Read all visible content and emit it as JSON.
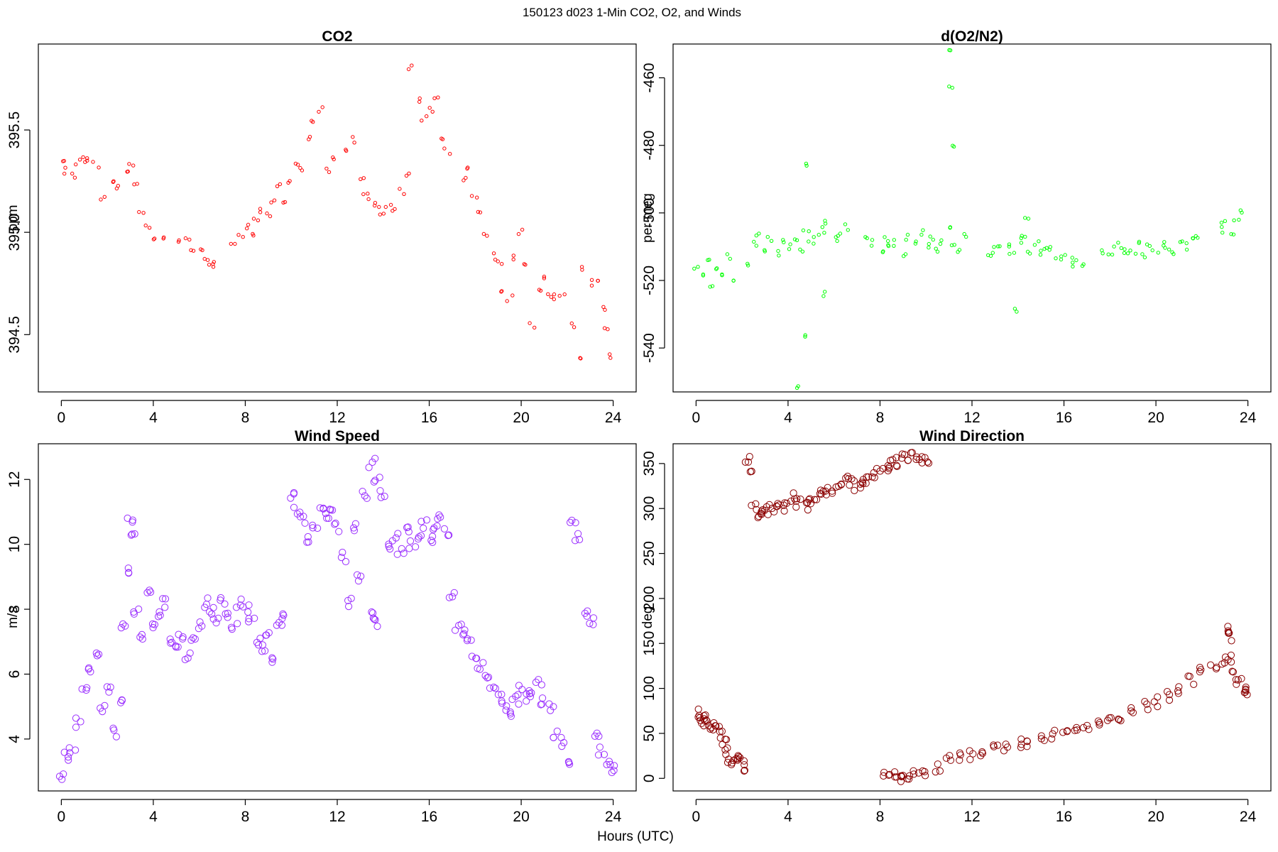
{
  "page": {
    "title": "150123   d023   1-Min CO2, O2, and Winds",
    "xlabel": "Hours (UTC)"
  },
  "chart_data": [
    {
      "type": "scatter",
      "title": "CO2",
      "ylabel": "ppm",
      "xlabel": "",
      "xlim": [
        -1,
        25
      ],
      "ylim": [
        394.22,
        395.92
      ],
      "xticks": [
        0,
        4,
        8,
        12,
        16,
        20,
        24
      ],
      "yticks": [
        394.5,
        395.0,
        395.5
      ],
      "ytick_labels": [
        "394.5",
        "395.0",
        "395.5"
      ],
      "color": "#ff0000",
      "x": [
        0.0,
        0.25,
        0.5,
        0.75,
        1.0,
        1.25,
        1.5,
        1.75,
        2.25,
        2.5,
        2.75,
        3.0,
        3.25,
        3.5,
        3.75,
        4.0,
        4.5,
        5.0,
        5.5,
        5.75,
        6.0,
        6.25,
        6.5,
        6.75,
        7.5,
        7.75,
        8.0,
        8.25,
        8.5,
        8.75,
        9.0,
        9.25,
        9.5,
        9.75,
        10.0,
        10.25,
        10.5,
        10.75,
        11.0,
        11.25,
        11.5,
        11.75,
        12.25,
        12.75,
        13.0,
        13.25,
        13.5,
        13.75,
        14.0,
        14.25,
        14.5,
        14.75,
        15.0,
        15.25,
        15.5,
        15.75,
        16.0,
        16.25,
        16.5,
        16.75,
        17.5,
        17.75,
        18.0,
        18.25,
        18.5,
        18.75,
        19.0,
        19.25,
        19.5,
        19.75,
        20.0,
        20.25,
        20.5,
        20.75,
        21.0,
        21.25,
        21.5,
        21.75,
        22.25,
        22.5,
        22.75,
        23.0,
        23.25,
        23.5,
        23.75,
        24.0
      ],
      "y": [
        395.35,
        395.3,
        395.28,
        395.34,
        395.36,
        395.35,
        395.33,
        395.17,
        395.25,
        395.22,
        395.28,
        395.33,
        395.22,
        395.1,
        395.02,
        394.98,
        394.97,
        394.96,
        394.97,
        394.92,
        394.9,
        394.88,
        394.85,
        394.84,
        394.94,
        394.98,
        395.02,
        395.0,
        395.05,
        395.1,
        395.08,
        395.15,
        395.22,
        395.15,
        395.25,
        395.32,
        395.3,
        395.45,
        395.55,
        395.6,
        395.3,
        395.35,
        395.4,
        395.45,
        395.25,
        395.2,
        395.15,
        395.12,
        395.1,
        395.13,
        395.12,
        395.2,
        395.28,
        395.8,
        395.65,
        395.55,
        395.6,
        395.65,
        395.45,
        395.4,
        395.25,
        395.3,
        395.18,
        395.1,
        395.0,
        394.88,
        394.85,
        394.72,
        394.68,
        394.88,
        395.0,
        394.85,
        394.55,
        394.72,
        394.78,
        394.7,
        394.68,
        394.7,
        394.55,
        394.4,
        394.82,
        394.75,
        394.78,
        394.62,
        394.52,
        394.4
      ]
    },
    {
      "type": "scatter",
      "title": "d(O2/N2)",
      "ylabel": "per meg",
      "xlabel": "",
      "xlim": [
        -1,
        25
      ],
      "ylim": [
        -553,
        -450
      ],
      "xticks": [
        0,
        4,
        8,
        12,
        16,
        20,
        24
      ],
      "yticks": [
        -540,
        -520,
        -500,
        -480,
        -460
      ],
      "ytick_labels": [
        "-540",
        "-520",
        "-500",
        "-480",
        "-460"
      ],
      "color": "#00ff00",
      "x": [
        0.0,
        0.25,
        0.5,
        0.75,
        1.0,
        1.25,
        1.5,
        1.75,
        2.25,
        2.5,
        2.75,
        3.0,
        3.25,
        3.5,
        3.75,
        4.0,
        4.25,
        4.5,
        4.75,
        5.0,
        5.25,
        5.5,
        5.75,
        6.0,
        6.25,
        6.5,
        7.5,
        7.75,
        8.0,
        8.25,
        8.5,
        8.75,
        9.0,
        9.25,
        9.5,
        9.75,
        10.0,
        10.25,
        10.5,
        10.75,
        11.0,
        11.25,
        11.5,
        11.75,
        12.75,
        13.0,
        13.25,
        13.5,
        13.75,
        14.0,
        14.25,
        14.5,
        14.75,
        15.0,
        15.25,
        15.5,
        15.75,
        16.0,
        16.25,
        16.5,
        16.75,
        17.75,
        18.0,
        18.25,
        18.5,
        18.75,
        19.0,
        19.25,
        19.5,
        19.75,
        20.0,
        20.25,
        20.5,
        20.75,
        21.0,
        21.25,
        21.5,
        21.75,
        22.75,
        23.0,
        23.25,
        23.5,
        23.75,
        4.6,
        4.5,
        4.7,
        11.05,
        11.0,
        11.1,
        13.8,
        5.5,
        14.4
      ],
      "y": [
        -517,
        -519,
        -514,
        -521,
        -516,
        -518,
        -513,
        -520,
        -515,
        -509,
        -507,
        -511,
        -508,
        -512,
        -509,
        -510,
        -508,
        -511,
        -506,
        -509,
        -507,
        -505,
        -503,
        -508,
        -506,
        -504,
        -507,
        -509,
        -511,
        -508,
        -510,
        -509,
        -512,
        -507,
        -509,
        -506,
        -510,
        -508,
        -511,
        -509,
        -505,
        -510,
        -512,
        -507,
        -513,
        -511,
        -509,
        -510,
        -512,
        -508,
        -507,
        -511,
        -509,
        -512,
        -510,
        -511,
        -513,
        -512,
        -515,
        -514,
        -516,
        -511,
        -512,
        -509,
        -510,
        -511,
        -512,
        -509,
        -513,
        -510,
        -511,
        -509,
        -510,
        -512,
        -508,
        -510,
        -508,
        -507,
        -505,
        -503,
        -506,
        -502,
        -500,
        -537,
        -552,
        -485,
        -452,
        -463,
        -480,
        -529,
        -524,
        -502
      ]
    },
    {
      "type": "scatter",
      "title": "Wind Speed",
      "ylabel": "m/s",
      "xlabel": "",
      "xlim": [
        -1,
        25
      ],
      "ylim": [
        2.4,
        13.1
      ],
      "xticks": [
        0,
        4,
        8,
        12,
        16,
        20,
        24
      ],
      "yticks": [
        4,
        6,
        8,
        10,
        12
      ],
      "ytick_labels": [
        "4",
        "6",
        "8",
        "10",
        "12"
      ],
      "color": "#9b30ff",
      "x": [
        0.0,
        0.25,
        0.5,
        0.75,
        1.0,
        1.25,
        1.5,
        1.75,
        2.0,
        2.25,
        2.5,
        2.75,
        3.0,
        3.25,
        3.5,
        3.75,
        4.0,
        4.25,
        4.5,
        4.75,
        5.0,
        5.25,
        5.5,
        5.75,
        6.0,
        6.25,
        6.5,
        6.75,
        7.0,
        7.25,
        7.5,
        7.75,
        8.0,
        8.25,
        8.5,
        8.75,
        9.0,
        9.25,
        9.5,
        9.75,
        10.0,
        10.25,
        10.5,
        10.75,
        11.0,
        11.25,
        11.5,
        11.75,
        12.0,
        12.25,
        12.5,
        12.75,
        13.0,
        13.25,
        13.5,
        13.75,
        14.0,
        14.25,
        14.5,
        14.75,
        15.0,
        15.25,
        15.5,
        15.75,
        16.0,
        16.25,
        16.5,
        16.75,
        17.0,
        17.25,
        17.5,
        17.75,
        18.0,
        18.25,
        18.5,
        18.75,
        19.0,
        19.25,
        19.5,
        19.75,
        20.0,
        20.25,
        20.5,
        20.75,
        21.0,
        21.25,
        21.5,
        21.75,
        22.0,
        22.25,
        22.5,
        22.75,
        23.0,
        23.25,
        23.5,
        23.75,
        24.0,
        3.0,
        3.1,
        13.5,
        13.7
      ],
      "y": [
        2.9,
        3.5,
        3.6,
        4.5,
        5.5,
        6.2,
        6.5,
        5.0,
        5.5,
        4.2,
        5.2,
        7.5,
        9.2,
        8.0,
        7.2,
        8.5,
        7.5,
        7.8,
        8.2,
        7.0,
        6.8,
        7.2,
        6.6,
        7.0,
        7.5,
        8.2,
        8.0,
        7.6,
        8.2,
        7.8,
        7.5,
        8.2,
        8.0,
        7.6,
        7.0,
        6.8,
        7.2,
        6.5,
        7.5,
        7.8,
        11.5,
        11.0,
        10.8,
        10.2,
        10.6,
        11.0,
        10.8,
        11.2,
        10.5,
        9.6,
        8.2,
        10.5,
        9.0,
        11.5,
        12.5,
        12.0,
        11.5,
        10.0,
        10.2,
        9.8,
        10.5,
        10.0,
        10.3,
        10.6,
        10.2,
        10.5,
        10.8,
        10.4,
        8.5,
        7.5,
        7.3,
        7.0,
        6.5,
        6.2,
        6.0,
        5.6,
        5.3,
        5.0,
        4.8,
        5.2,
        5.5,
        5.3,
        5.4,
        5.7,
        5.2,
        5.0,
        4.1,
        3.9,
        3.2,
        10.8,
        10.2,
        7.8,
        7.6,
        4.1,
        3.6,
        3.2,
        3.1,
        10.8,
        10.2,
        7.8,
        7.6
      ],
      "y_extra_note": ""
    },
    {
      "type": "scatter",
      "title": "Wind Direction",
      "ylabel": "deg",
      "xlabel": "",
      "xlim": [
        -1,
        25
      ],
      "ylim": [
        -14,
        372
      ],
      "xticks": [
        0,
        4,
        8,
        12,
        16,
        20,
        24
      ],
      "yticks": [
        0,
        50,
        100,
        150,
        200,
        250,
        300,
        350
      ],
      "ytick_labels": [
        "0",
        "50",
        "100",
        "150",
        "200",
        "250",
        "300",
        "350"
      ],
      "color": "#8b0000",
      "x": [
        0.0,
        0.15,
        0.3,
        0.45,
        0.6,
        0.75,
        0.9,
        1.05,
        1.2,
        1.35,
        1.5,
        1.65,
        1.8,
        1.95,
        2.1,
        2.25,
        2.4,
        2.55,
        2.7,
        2.85,
        3.0,
        3.25,
        3.5,
        3.75,
        4.0,
        4.25,
        4.5,
        4.75,
        5.0,
        5.25,
        5.5,
        5.75,
        6.0,
        6.25,
        6.5,
        6.75,
        7.0,
        7.25,
        7.5,
        7.75,
        8.0,
        8.25,
        8.5,
        8.75,
        9.0,
        9.25,
        9.5,
        9.75,
        10.0,
        8.3,
        8.5,
        8.8,
        9.0,
        9.3,
        9.6,
        10.0,
        10.5,
        11.0,
        11.5,
        12.0,
        12.5,
        13.0,
        13.5,
        14.0,
        14.5,
        15.0,
        15.5,
        16.0,
        16.5,
        17.0,
        17.5,
        18.0,
        18.5,
        19.0,
        19.5,
        20.0,
        20.5,
        21.0,
        21.5,
        22.0,
        22.5,
        23.0,
        23.25,
        23.4,
        23.6,
        23.8,
        23.9,
        23.25,
        23.3
      ],
      "y": [
        72,
        65,
        62,
        66,
        60,
        57,
        55,
        50,
        40,
        30,
        22,
        18,
        20,
        22,
        12,
        355,
        345,
        300,
        290,
        295,
        298,
        300,
        305,
        300,
        308,
        312,
        306,
        302,
        308,
        315,
        320,
        318,
        322,
        330,
        335,
        330,
        325,
        328,
        330,
        335,
        342,
        345,
        350,
        352,
        355,
        357,
        358,
        356,
        355,
        2,
        3,
        5,
        2,
        3,
        5,
        7,
        12,
        20,
        24,
        26,
        30,
        33,
        35,
        38,
        40,
        45,
        48,
        52,
        54,
        58,
        60,
        64,
        68,
        75,
        80,
        85,
        92,
        100,
        110,
        120,
        125,
        132,
        134,
        115,
        108,
        102,
        95,
        165,
        158
      ]
    }
  ]
}
